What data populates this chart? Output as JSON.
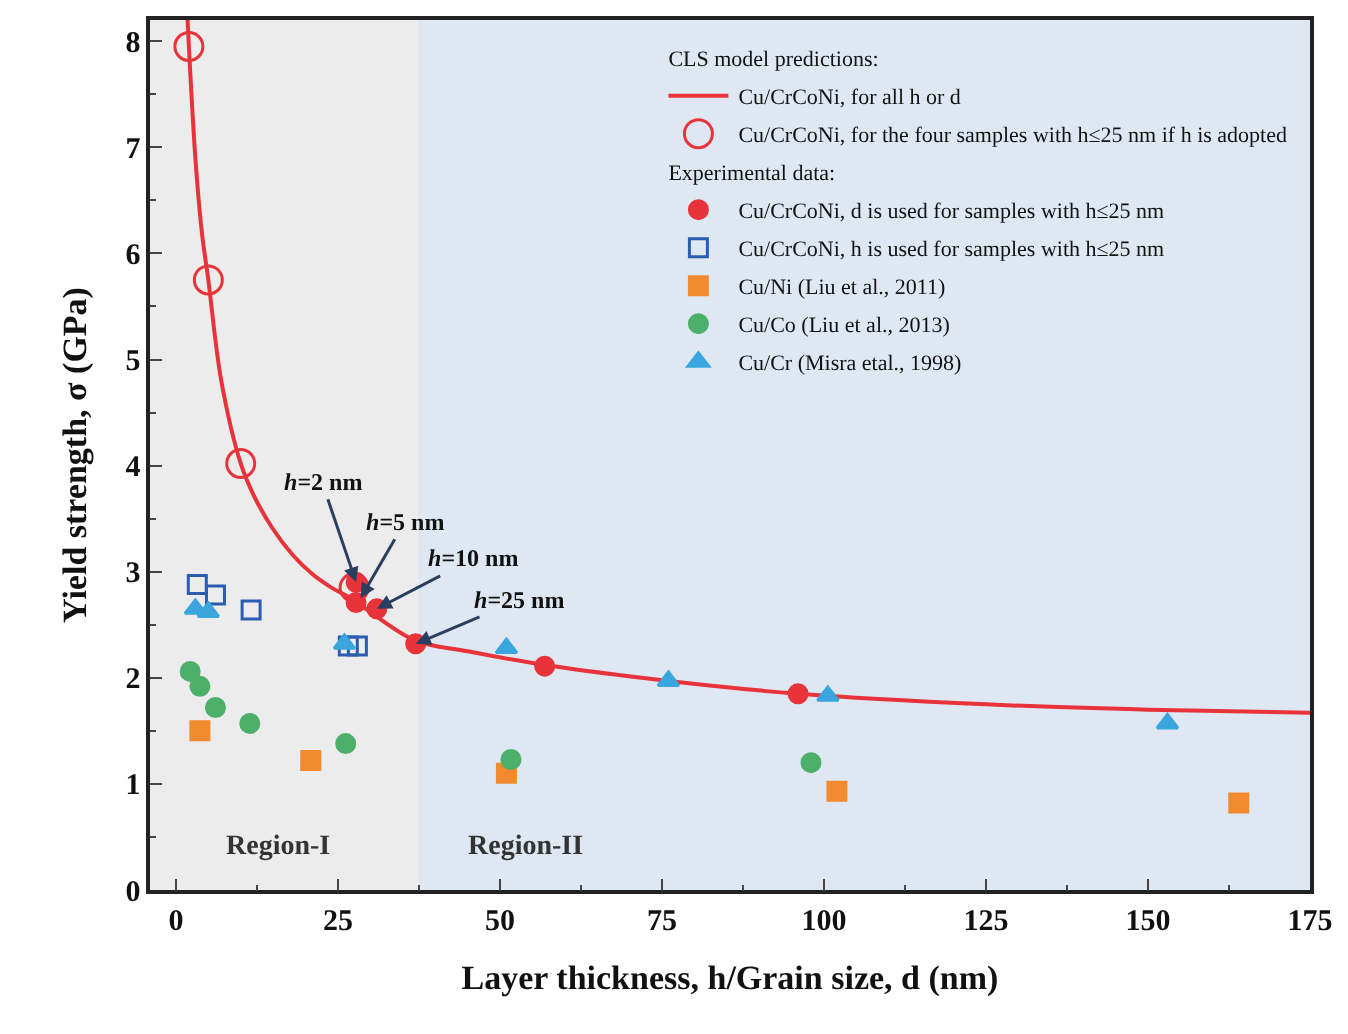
{
  "chart_data": {
    "type": "scatter",
    "xlabel": "Layer thickness, h/Grain size, d (nm)",
    "ylabel": "Yield strength, σ (GPa)",
    "xlim": [
      -4,
      175
    ],
    "xticks": [
      0,
      25,
      50,
      75,
      100,
      125,
      150,
      175
    ],
    "ylim": [
      0,
      8.2
    ],
    "yticks": [
      0,
      1,
      2,
      3,
      4,
      5,
      6,
      7,
      8
    ],
    "grid": false,
    "legend": "top right",
    "legend_title": "CLS model predictions:",
    "series": [
      {
        "name": "Cu/CrCoNi, for all h or d",
        "type": "line",
        "color": "#e8333a",
        "marker": "none",
        "line_style": "solid",
        "x": [
          1.8,
          2,
          3,
          4,
          5,
          7,
          10,
          12,
          15,
          18,
          21,
          24,
          27,
          30,
          37,
          45,
          57,
          76,
          96,
          125,
          150,
          175
        ],
        "values": [
          8.2,
          7.95,
          6.9,
          6.2,
          5.75,
          4.8,
          4.02,
          3.72,
          3.4,
          3.16,
          2.98,
          2.85,
          2.75,
          2.62,
          2.35,
          2.25,
          2.12,
          1.97,
          1.85,
          1.75,
          1.7,
          1.67
        ]
      },
      {
        "name": "Cu/CrCoNi, for the four samples with h≤25 nm if h is adopted",
        "color": "#e8333a",
        "marker": "circle-open",
        "x": [
          2,
          5,
          10,
          27.5
        ],
        "values": [
          7.95,
          5.75,
          4.02,
          2.85
        ]
      },
      {
        "name": "Cu/CrCoNi, d is used for samples with h≤25 nm",
        "color": "#e8333a",
        "marker": "circle",
        "x": [
          27.8,
          27.8,
          31,
          37,
          56.9,
          96
        ],
        "values": [
          2.9,
          2.71,
          2.65,
          2.32,
          2.11,
          1.85
        ]
      },
      {
        "name": "Cu/CrCoNi, h is used for samples with h≤25 nm",
        "color": "#2a5db0",
        "marker": "square-open",
        "x": [
          3.3,
          6.1,
          11.6,
          26.6,
          28
        ],
        "values": [
          2.88,
          2.78,
          2.64,
          2.3,
          2.3
        ]
      },
      {
        "name": "Cu/Ni (Liu et al., 2011)",
        "color": "#f28a30",
        "marker": "square",
        "x": [
          3.7,
          20.8,
          51,
          102,
          164
        ],
        "values": [
          1.5,
          1.22,
          1.1,
          0.93,
          0.82
        ]
      },
      {
        "name": "Cu/Co (Liu et al., 2013)",
        "color": "#4caf6a",
        "marker": "circle",
        "x": [
          2.2,
          3.7,
          6.1,
          11.4,
          26.2,
          51.7,
          98
        ],
        "values": [
          2.06,
          1.92,
          1.72,
          1.57,
          1.38,
          1.23,
          1.2
        ]
      },
      {
        "name": "Cu/Cr (Misra etal., 1998)",
        "color": "#3aa6dd",
        "marker": "triangle",
        "x": [
          3,
          5,
          26,
          51,
          76,
          100.6,
          153
        ],
        "values": [
          2.65,
          2.62,
          2.32,
          2.28,
          1.97,
          1.83,
          1.57
        ]
      }
    ],
    "bands": [
      {
        "axis": "x",
        "from": -4,
        "to": 37.3,
        "label": "Region-I",
        "color": "#ececec"
      },
      {
        "axis": "x",
        "from": 37.3,
        "to": 175,
        "label": "Region-II",
        "color": "#dfe8f2"
      }
    ],
    "annotations": [
      "Experimental data:",
      {
        "text": "h=2 nm",
        "x": 27.8,
        "y": 2.9
      },
      {
        "text": "h=5 nm",
        "x": 28.5,
        "y": 2.75
      },
      {
        "text": "h=10 nm",
        "x": 31,
        "y": 2.65
      },
      {
        "text": "h=25 nm",
        "x": 37,
        "y": 2.32
      }
    ]
  }
}
